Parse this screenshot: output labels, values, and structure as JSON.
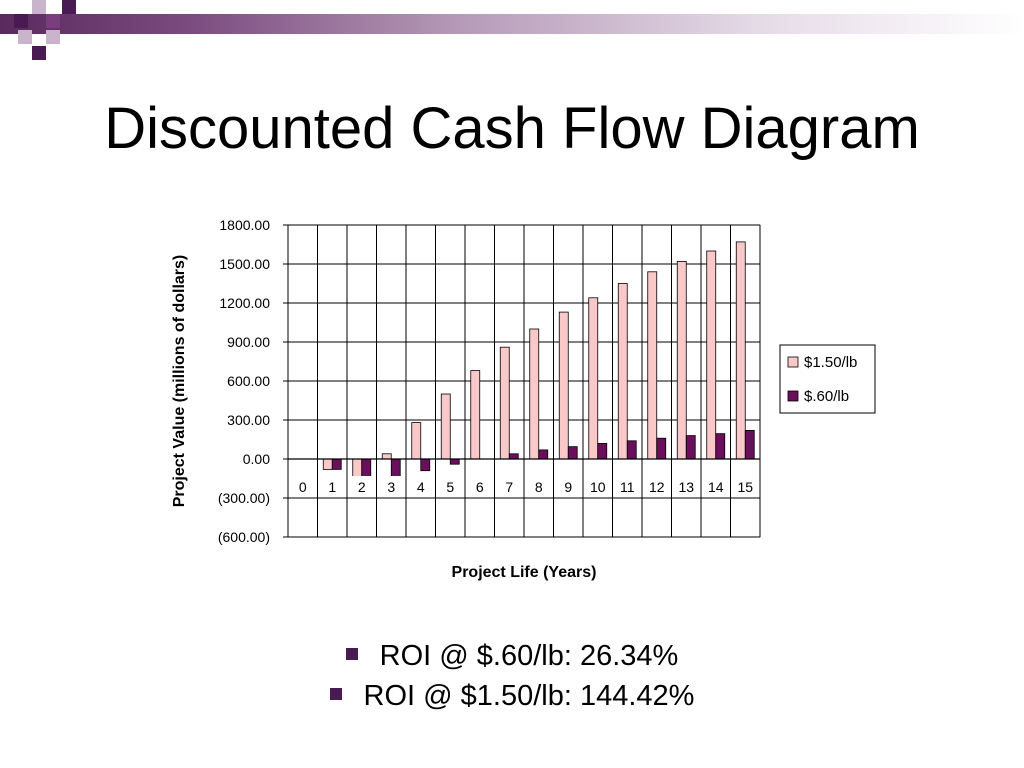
{
  "slide": {
    "title": "Discounted Cash Flow Diagram",
    "accent_color": "#4a1a52",
    "bullets": [
      "ROI @ $.60/lb:  26.34%",
      "ROI @ $1.50/lb:  144.42%"
    ]
  },
  "chart_data": {
    "type": "bar",
    "title": "",
    "xlabel": "Project Life (Years)",
    "ylabel": "Project Value (millions of dollars)",
    "ylim": [
      -600,
      1800
    ],
    "yticks": [
      1800,
      1500,
      1200,
      900,
      600,
      300,
      0,
      -300,
      -600
    ],
    "ytick_labels": [
      "1800.00",
      "1500.00",
      "1200.00",
      "900.00",
      "600.00",
      "300.00",
      "0.00",
      "(300.00)",
      "(600.00)"
    ],
    "categories": [
      "0",
      "1",
      "2",
      "3",
      "4",
      "5",
      "6",
      "7",
      "8",
      "9",
      "10",
      "11",
      "12",
      "13",
      "14",
      "15"
    ],
    "grid": true,
    "legend_position": "right",
    "series": [
      {
        "name": "$1.50/lb",
        "color": "#f9c9c9",
        "values": [
          0,
          -80,
          -230,
          40,
          280,
          500,
          680,
          860,
          1000,
          1130,
          1240,
          1350,
          1440,
          1520,
          1600,
          1670
        ]
      },
      {
        "name": "$.60/lb",
        "color": "#6a0f5c",
        "values": [
          0,
          -80,
          -230,
          -160,
          -90,
          -40,
          0,
          40,
          70,
          95,
          120,
          140,
          160,
          180,
          195,
          220
        ]
      }
    ]
  }
}
